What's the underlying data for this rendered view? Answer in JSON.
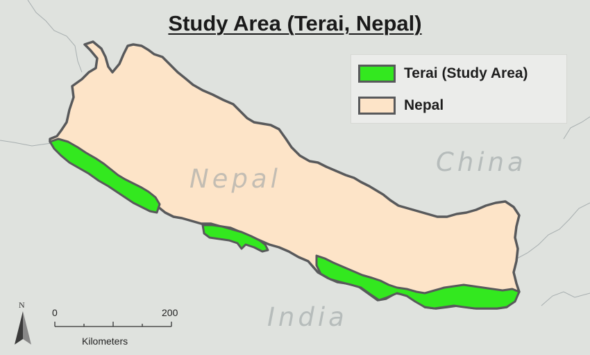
{
  "title": "Study Area (Terai, Nepal)",
  "legend": {
    "items": [
      {
        "label": "Terai (Study Area)",
        "color": "#33e81f"
      },
      {
        "label": "Nepal",
        "color": "#fde4c8"
      }
    ]
  },
  "places": {
    "nepal": "Nepal",
    "china": "China",
    "india": "India"
  },
  "north_arrow": {
    "letter": "N"
  },
  "scale_bar": {
    "start": "0",
    "end": "200",
    "unit": "Kilometers"
  },
  "colors": {
    "background": "#dfe2de",
    "nepal_fill": "#fde4c8",
    "terai_fill": "#33e81f",
    "border": "#58595b"
  }
}
